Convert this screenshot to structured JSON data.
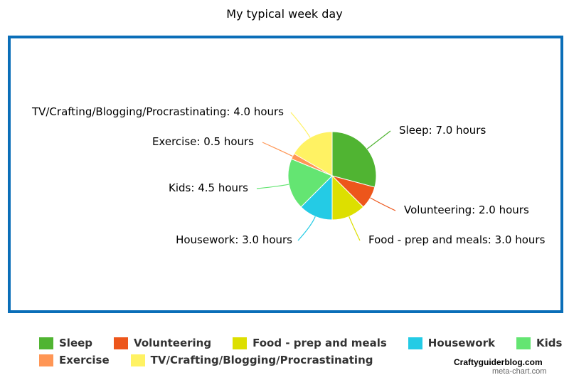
{
  "chart_data": {
    "type": "pie",
    "title": "My typical week day",
    "unit_suffix": "hours",
    "slices": [
      {
        "name": "Sleep",
        "value": 7.0,
        "color": "#50b432",
        "label": "Sleep: 7.0 hours"
      },
      {
        "name": "Volunteering",
        "value": 2.0,
        "color": "#ed561b",
        "label": "Volunteering: 2.0 hours"
      },
      {
        "name": "Food - prep and meals",
        "value": 3.0,
        "color": "#dddf00",
        "label": "Food - prep and meals: 3.0 hours"
      },
      {
        "name": "Housework",
        "value": 3.0,
        "color": "#24cbe5",
        "label": "Housework: 3.0 hours"
      },
      {
        "name": "Kids",
        "value": 4.5,
        "color": "#64e572",
        "label": "Kids: 4.5 hours"
      },
      {
        "name": "Exercise",
        "value": 0.5,
        "color": "#ff9655",
        "label": "Exercise: 0.5 hours"
      },
      {
        "name": "TV/Crafting/Blogging/Procrastinating",
        "value": 4.0,
        "color": "#fff263",
        "label": "TV/Crafting/Blogging/Procrastinating: 4.0 hours"
      }
    ],
    "legend_position": "bottom",
    "frame_color": "#0a6eb8"
  },
  "credits": {
    "site": "Craftyguiderblog.com",
    "generator": "meta-chart.com"
  }
}
